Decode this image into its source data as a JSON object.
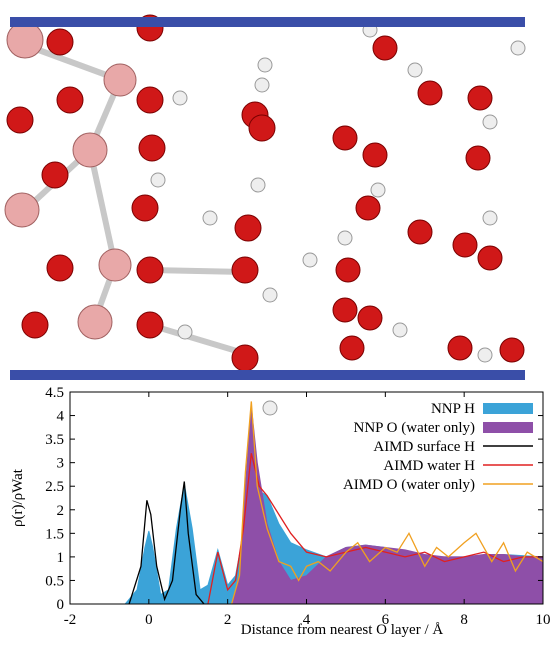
{
  "chart_data": {
    "type": "area-line",
    "xlabel": "Distance from nearest O layer / Å",
    "ylabel": "ρ(r)/ρWat",
    "xlim": [
      -2,
      10
    ],
    "xticks": [
      -2,
      0,
      2,
      4,
      6,
      8,
      10
    ],
    "ylim": [
      0,
      4.5
    ],
    "yticks": [
      0,
      0.5,
      1,
      1.5,
      2,
      2.5,
      3,
      3.5,
      4,
      4.5
    ],
    "legend": "upper right",
    "series": [
      {
        "name": "NNP H",
        "color": "#3ba3d8",
        "style": "area",
        "x": [
          -0.6,
          -0.3,
          -0.1,
          0,
          0.1,
          0.3,
          0.5,
          0.7,
          0.9,
          1.1,
          1.3,
          1.5,
          1.75,
          2.0,
          2.2,
          2.4,
          2.6,
          2.8,
          3.0,
          3.3,
          3.6,
          4.0,
          4.5,
          5.0,
          5.5,
          6.0,
          6.5,
          7,
          8,
          9,
          10
        ],
        "values": [
          0,
          0.3,
          1.2,
          1.55,
          1.2,
          0.2,
          0.3,
          1.6,
          2.55,
          1.6,
          0.3,
          0.4,
          1.15,
          0.4,
          0.6,
          1.5,
          3.2,
          2.4,
          2.3,
          1.7,
          1.3,
          1.15,
          1.0,
          1.2,
          1.25,
          1.2,
          1.05,
          1.0,
          1.0,
          1.05,
          1.0
        ]
      },
      {
        "name": "NNP O (water only)",
        "color": "#8e4fa8",
        "style": "area",
        "x": [
          2.1,
          2.3,
          2.45,
          2.6,
          2.75,
          3.0,
          3.3,
          3.6,
          4.0,
          4.5,
          5.0,
          5.5,
          6.0,
          6.5,
          7,
          7.5,
          8,
          8.5,
          9,
          9.5,
          10
        ],
        "values": [
          0,
          0.5,
          2.5,
          4.2,
          3.0,
          1.7,
          0.9,
          0.5,
          0.6,
          1.0,
          1.2,
          1.25,
          1.2,
          1.15,
          1.05,
          1.0,
          1.0,
          1.05,
          1.05,
          1.0,
          1.0
        ]
      },
      {
        "name": "AIMD surface H",
        "color": "#000000",
        "style": "line",
        "x": [
          -0.5,
          -0.2,
          -0.05,
          0.05,
          0.2,
          0.4,
          0.6,
          0.8,
          0.9,
          1.0,
          1.2,
          1.4
        ],
        "values": [
          0,
          0.8,
          2.2,
          1.9,
          0.8,
          0.1,
          0.5,
          2.0,
          2.6,
          1.5,
          0.2,
          0
        ]
      },
      {
        "name": "AIMD water H",
        "color": "#e02020",
        "style": "line",
        "x": [
          1.5,
          1.75,
          2.0,
          2.2,
          2.4,
          2.6,
          2.8,
          3.0,
          3.3,
          3.6,
          4,
          4.5,
          5,
          5.5,
          6,
          6.5,
          7,
          7.5,
          8,
          8.5,
          9,
          9.5,
          10
        ],
        "values": [
          0,
          1.1,
          0.3,
          0.5,
          1.6,
          3.2,
          2.5,
          2.3,
          1.9,
          1.5,
          1.1,
          1.0,
          1.1,
          1.2,
          1.1,
          1.0,
          1.1,
          0.9,
          1.0,
          1.1,
          0.9,
          1.0,
          1.0
        ]
      },
      {
        "name": "AIMD O (water only)",
        "color": "#f0a020",
        "style": "line",
        "x": [
          2.1,
          2.3,
          2.45,
          2.6,
          2.75,
          3.0,
          3.3,
          3.6,
          3.8,
          4.0,
          4.3,
          4.6,
          5,
          5.3,
          5.6,
          6,
          6.3,
          6.6,
          7,
          7.3,
          7.6,
          8,
          8.3,
          8.7,
          9,
          9.3,
          9.6,
          10
        ],
        "values": [
          0,
          0.6,
          2.8,
          4.3,
          2.5,
          1.6,
          0.9,
          0.8,
          0.5,
          0.8,
          0.9,
          0.7,
          1.1,
          1.3,
          0.9,
          1.2,
          1.1,
          1.5,
          0.8,
          1.2,
          1.0,
          1.3,
          1.5,
          0.9,
          1.3,
          0.7,
          1.1,
          0.9
        ]
      }
    ]
  }
}
